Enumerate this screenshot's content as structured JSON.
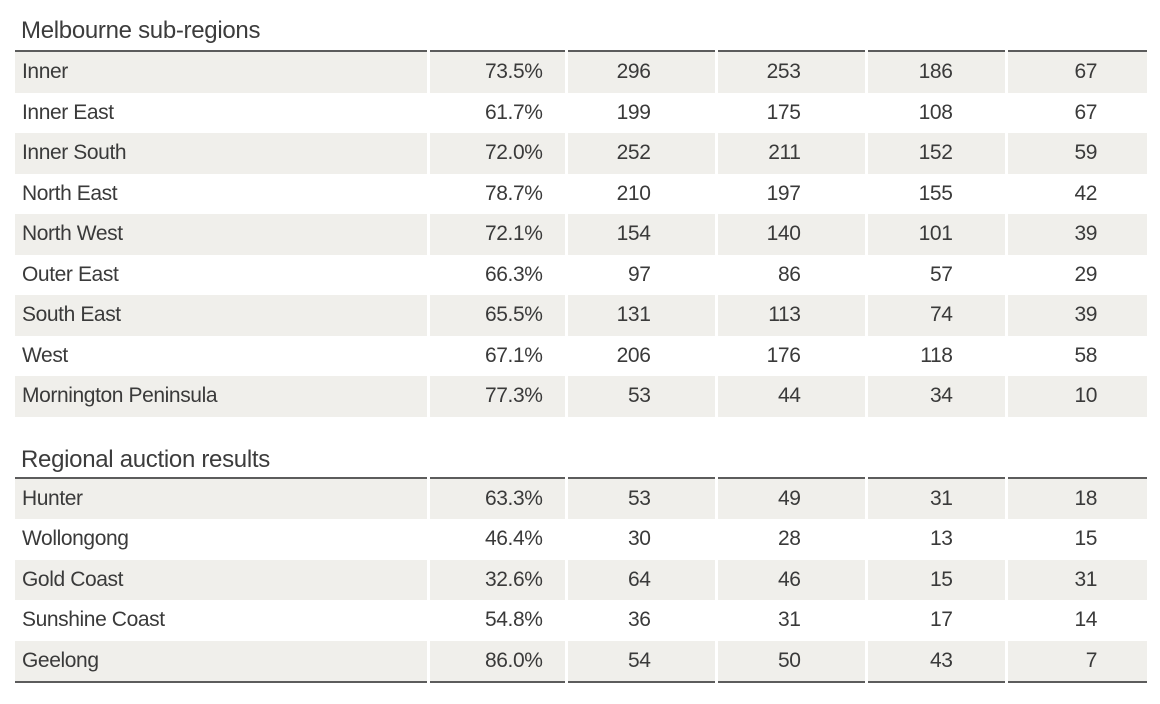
{
  "melbourne": {
    "title": "Melbourne sub-regions",
    "rows": [
      [
        "Inner",
        "73.5%",
        "296",
        "253",
        "186",
        "67"
      ],
      [
        "Inner East",
        "61.7%",
        "199",
        "175",
        "108",
        "67"
      ],
      [
        "Inner South",
        "72.0%",
        "252",
        "211",
        "152",
        "59"
      ],
      [
        "North East",
        "78.7%",
        "210",
        "197",
        "155",
        "42"
      ],
      [
        "North West",
        "72.1%",
        "154",
        "140",
        "101",
        "39"
      ],
      [
        "Outer East",
        "66.3%",
        "97",
        "86",
        "57",
        "29"
      ],
      [
        "South East",
        "65.5%",
        "131",
        "113",
        "74",
        "39"
      ],
      [
        "West",
        "67.1%",
        "206",
        "176",
        "118",
        "58"
      ],
      [
        "Mornington Peninsula",
        "77.3%",
        "53",
        "44",
        "34",
        "10"
      ]
    ]
  },
  "regional": {
    "title": "Regional auction results",
    "rows": [
      [
        "Hunter",
        "63.3%",
        "53",
        "49",
        "31",
        "18"
      ],
      [
        "Wollongong",
        "46.4%",
        "30",
        "28",
        "13",
        "15"
      ],
      [
        "Gold Coast",
        "32.6%",
        "64",
        "46",
        "15",
        "31"
      ],
      [
        "Sunshine Coast",
        "54.8%",
        "36",
        "31",
        "17",
        "14"
      ],
      [
        "Geelong",
        "86.0%",
        "54",
        "50",
        "43",
        "7"
      ]
    ]
  }
}
